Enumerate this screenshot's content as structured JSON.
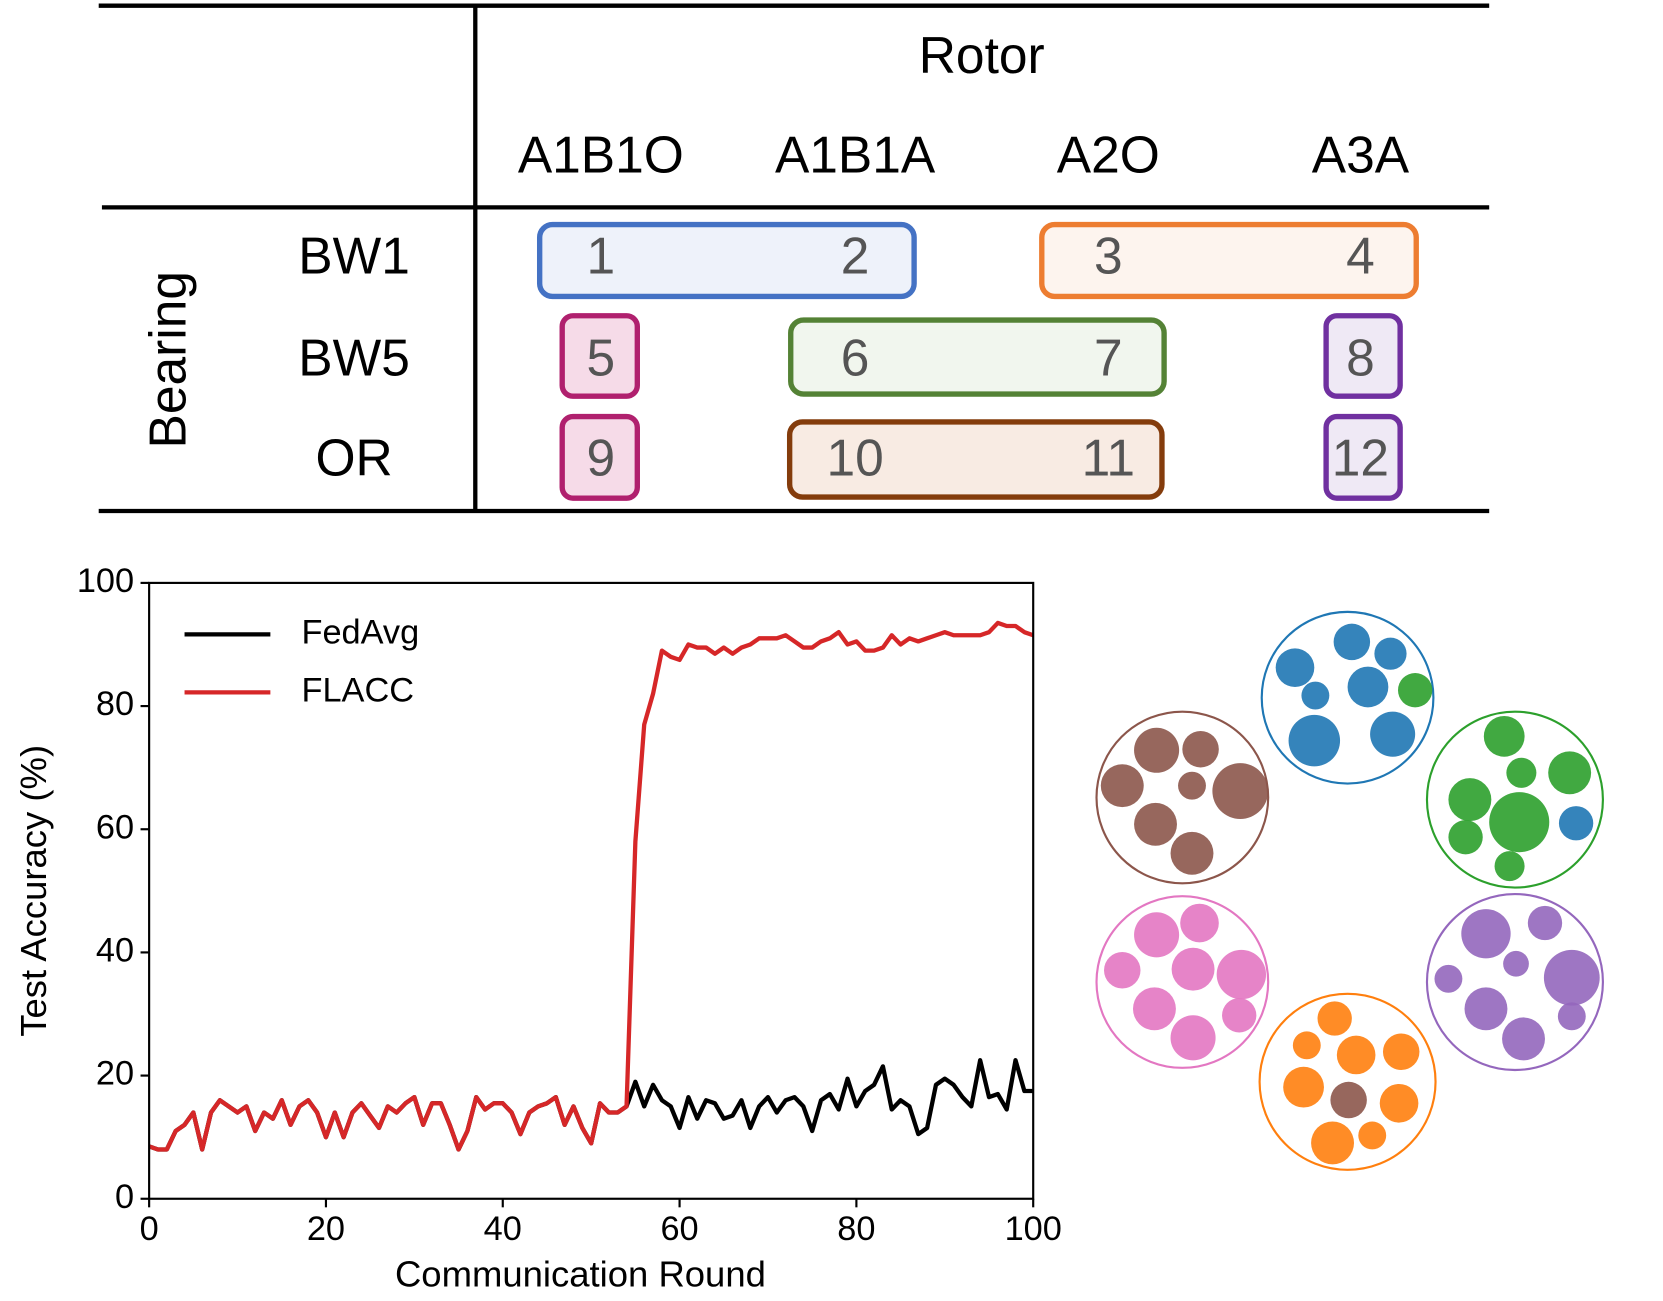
{
  "table": {
    "header": "Rotor",
    "columns": [
      "A1B1O",
      "A1B1A",
      "A2O",
      "A3A"
    ],
    "row_group": "Bearing",
    "rows": [
      "BW1",
      "BW5",
      "OR"
    ],
    "cells": [
      [
        "1",
        "2",
        "3",
        "4"
      ],
      [
        "5",
        "6",
        "7",
        "8"
      ],
      [
        "9",
        "10",
        "11",
        "12"
      ]
    ]
  },
  "chart_data": {
    "type": "line",
    "xlabel": "Communication Round",
    "ylabel": "Test Accuracy (%)",
    "x": [
      0,
      1,
      2,
      3,
      4,
      5,
      6,
      7,
      8,
      9,
      10,
      11,
      12,
      13,
      14,
      15,
      16,
      17,
      18,
      19,
      20,
      21,
      22,
      23,
      24,
      25,
      26,
      27,
      28,
      29,
      30,
      31,
      32,
      33,
      34,
      35,
      36,
      37,
      38,
      39,
      40,
      41,
      42,
      43,
      44,
      45,
      46,
      47,
      48,
      49,
      50,
      51,
      52,
      53,
      54,
      55,
      56,
      57,
      58,
      59,
      60,
      61,
      62,
      63,
      64,
      65,
      66,
      67,
      68,
      69,
      70,
      71,
      72,
      73,
      74,
      75,
      76,
      77,
      78,
      79,
      80,
      81,
      82,
      83,
      84,
      85,
      86,
      87,
      88,
      89,
      90,
      91,
      92,
      93,
      94,
      95,
      96,
      97,
      98,
      99,
      100
    ],
    "series": [
      {
        "name": "FedAvg",
        "color": "#000000",
        "values": [
          8.5,
          8,
          8,
          11,
          12,
          14,
          8,
          14,
          16,
          15,
          14,
          15,
          11,
          14,
          13,
          16,
          12,
          15,
          16,
          14,
          10,
          14,
          10,
          14,
          15.5,
          13.5,
          11.5,
          15,
          14,
          15.5,
          16.5,
          12,
          15.5,
          15.5,
          12,
          8,
          11,
          16.5,
          14.5,
          15.5,
          15.5,
          14,
          10.5,
          14,
          15,
          15.5,
          16.5,
          12,
          15,
          11.5,
          9,
          15.5,
          14,
          14,
          15,
          19,
          15,
          18.5,
          16,
          15,
          11.5,
          16.5,
          13,
          16,
          15.5,
          13,
          13.5,
          16,
          11.5,
          15,
          16.5,
          14,
          16,
          16.5,
          15,
          11,
          16,
          17,
          14.5,
          19.5,
          15,
          17.5,
          18.5,
          21.5,
          14.5,
          16,
          15,
          10.5,
          11.5,
          18.5,
          19.5,
          18.5,
          16.5,
          15,
          22.5,
          16.5,
          17,
          14.5,
          22.5,
          17.5,
          17.5
        ]
      },
      {
        "name": "FLACC",
        "color": "#d62728",
        "values": [
          8.5,
          8,
          8,
          11,
          12,
          14,
          8,
          14,
          16,
          15,
          14,
          15,
          11,
          14,
          13,
          16,
          12,
          15,
          16,
          14,
          10,
          14,
          10,
          14,
          15.5,
          13.5,
          11.5,
          15,
          14,
          15.5,
          16.5,
          12,
          15.5,
          15.5,
          12,
          8,
          11,
          16.5,
          14.5,
          15.5,
          15.5,
          14,
          10.5,
          14,
          15,
          15.5,
          16.5,
          12,
          15,
          11.5,
          9,
          15.5,
          14,
          14,
          15,
          58,
          77,
          82,
          89,
          88,
          87.5,
          90,
          89.5,
          89.5,
          88.5,
          89.5,
          88.5,
          89.5,
          90,
          91,
          91,
          91,
          91.5,
          90.5,
          89.5,
          89.5,
          90.5,
          91,
          92,
          90,
          90.5,
          89,
          89,
          89.5,
          91.5,
          90,
          91,
          90.5,
          91,
          91.5,
          92,
          91.5,
          91.5,
          91.5,
          91.5,
          92,
          93.5,
          93,
          93,
          92,
          91.5
        ]
      }
    ],
    "xlim": [
      0,
      100
    ],
    "xticks": [
      0,
      20,
      40,
      60,
      80,
      100
    ],
    "ylim": [
      0,
      100
    ],
    "yticks": [
      0,
      20,
      40,
      60,
      80,
      100
    ]
  }
}
